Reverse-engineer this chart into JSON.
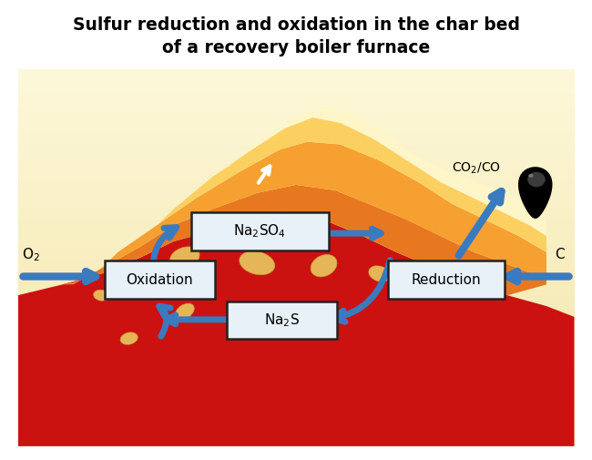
{
  "title_line1": "Sulfur reduction and oxidation in the char bed",
  "title_line2": "of a recovery boiler furnace",
  "title_fontsize": 13.5,
  "title_fontweight": "bold",
  "bg_color": "#ffffff",
  "arrow_color": "#3a7abf",
  "arrow_lw": 5,
  "box_edge_color": "#222222",
  "box_face_color": "#e8f0f8",
  "red_mound": "#cc1111",
  "orange_mid": "#e87820",
  "orange_upper": "#f5a030",
  "yellow_top": "#fcd060",
  "cream_bg": "#fef5c8",
  "pale_bg": "#fefae0",
  "char_color": "#e8c860",
  "char_edge": "#c8a030",
  "droplet_dark": "#111111",
  "diagram_border": "#888888"
}
